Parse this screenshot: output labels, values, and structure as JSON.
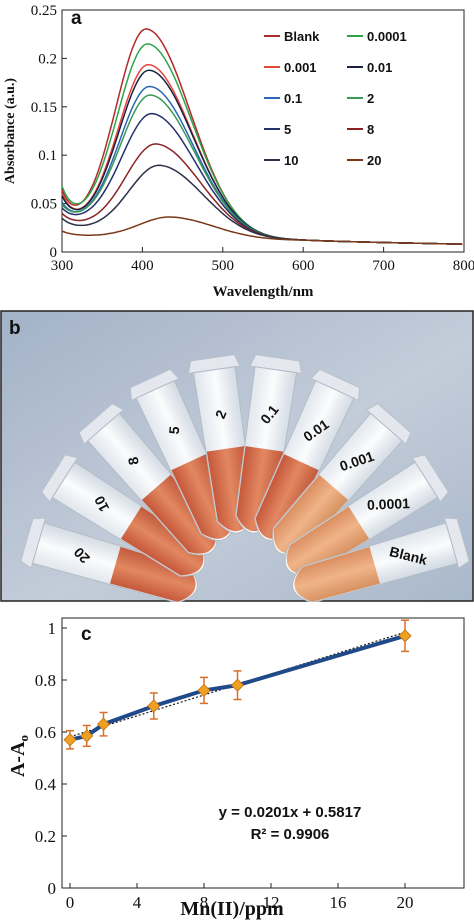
{
  "chart_data": [
    {
      "panel_label": "a",
      "type": "line",
      "xlabel": "Wavelength/nm",
      "ylabel": "Absorbance (a.u.)",
      "xlim": [
        300,
        800
      ],
      "ylim": [
        0,
        0.25
      ],
      "xticks": [
        "300",
        "400",
        "500",
        "600",
        "700",
        "800"
      ],
      "yticks": [
        "0",
        "0.05",
        "0.1",
        "0.15",
        "0.2",
        "0.25"
      ],
      "legend_position": "top-right",
      "series": [
        {
          "name": "Blank",
          "color": "#b22a2a",
          "peak_x": 405,
          "peak_y": 0.225,
          "base300": 0.06,
          "minx": 330,
          "miny": 0.02
        },
        {
          "name": "0.0001",
          "color": "#2ea44a",
          "peak_x": 407,
          "peak_y": 0.207,
          "base300": 0.065,
          "minx": 330,
          "miny": 0.024
        },
        {
          "name": "0.001",
          "color": "#e8453a",
          "peak_x": 408,
          "peak_y": 0.187,
          "base300": 0.058,
          "minx": 330,
          "miny": 0.022
        },
        {
          "name": "0.01",
          "color": "#1a2140",
          "peak_x": 409,
          "peak_y": 0.18,
          "base300": 0.056,
          "minx": 330,
          "miny": 0.024
        },
        {
          "name": "0.1",
          "color": "#2b66b0",
          "peak_x": 410,
          "peak_y": 0.162,
          "base300": 0.05,
          "minx": 330,
          "miny": 0.026
        },
        {
          "name": "2",
          "color": "#3a9a58",
          "peak_x": 411,
          "peak_y": 0.152,
          "base300": 0.048,
          "minx": 330,
          "miny": 0.028
        },
        {
          "name": "5",
          "color": "#24306e",
          "peak_x": 413,
          "peak_y": 0.133,
          "base300": 0.045,
          "minx": 330,
          "miny": 0.028
        },
        {
          "name": "8",
          "color": "#8a2424",
          "peak_x": 418,
          "peak_y": 0.104,
          "base300": 0.04,
          "minx": 330,
          "miny": 0.025
        },
        {
          "name": "10",
          "color": "#2a3148",
          "peak_x": 422,
          "peak_y": 0.084,
          "base300": 0.035,
          "minx": 330,
          "miny": 0.022
        },
        {
          "name": "20",
          "color": "#7a3a1a",
          "peak_x": 435,
          "peak_y": 0.034,
          "base300": 0.022,
          "minx": 340,
          "miny": 0.016
        }
      ]
    },
    {
      "panel_label": "c",
      "type": "scatter",
      "xlabel": "Mn(II)/ppm",
      "ylabel": "A-A",
      "ylabel_subscript": "o",
      "xlim": [
        0,
        24
      ],
      "ylim": [
        0,
        1
      ],
      "xticks": [
        "0",
        "4",
        "8",
        "12",
        "16",
        "20"
      ],
      "yticks": [
        "0",
        "0.2",
        "0.4",
        "0.6",
        "0.8",
        "1"
      ],
      "x": [
        0,
        1,
        2,
        5,
        8,
        10,
        20
      ],
      "y": [
        0.57,
        0.585,
        0.63,
        0.7,
        0.76,
        0.78,
        0.97
      ],
      "error": [
        0.035,
        0.04,
        0.045,
        0.05,
        0.05,
        0.055,
        0.06
      ],
      "marker_color": "#f0a020",
      "line_color": "#1f4a8a",
      "fit_slope": 0.0201,
      "fit_intercept": 0.5817,
      "equation": "y = 0.0201x + 0.5817",
      "r_squared": "R² = 0.9906"
    }
  ],
  "photo": {
    "panel_label": "b",
    "tube_labels": [
      "20",
      "10",
      "8",
      "5",
      "2",
      "0.1",
      "0.01",
      "0.001",
      "0.0001",
      "Blank"
    ]
  }
}
